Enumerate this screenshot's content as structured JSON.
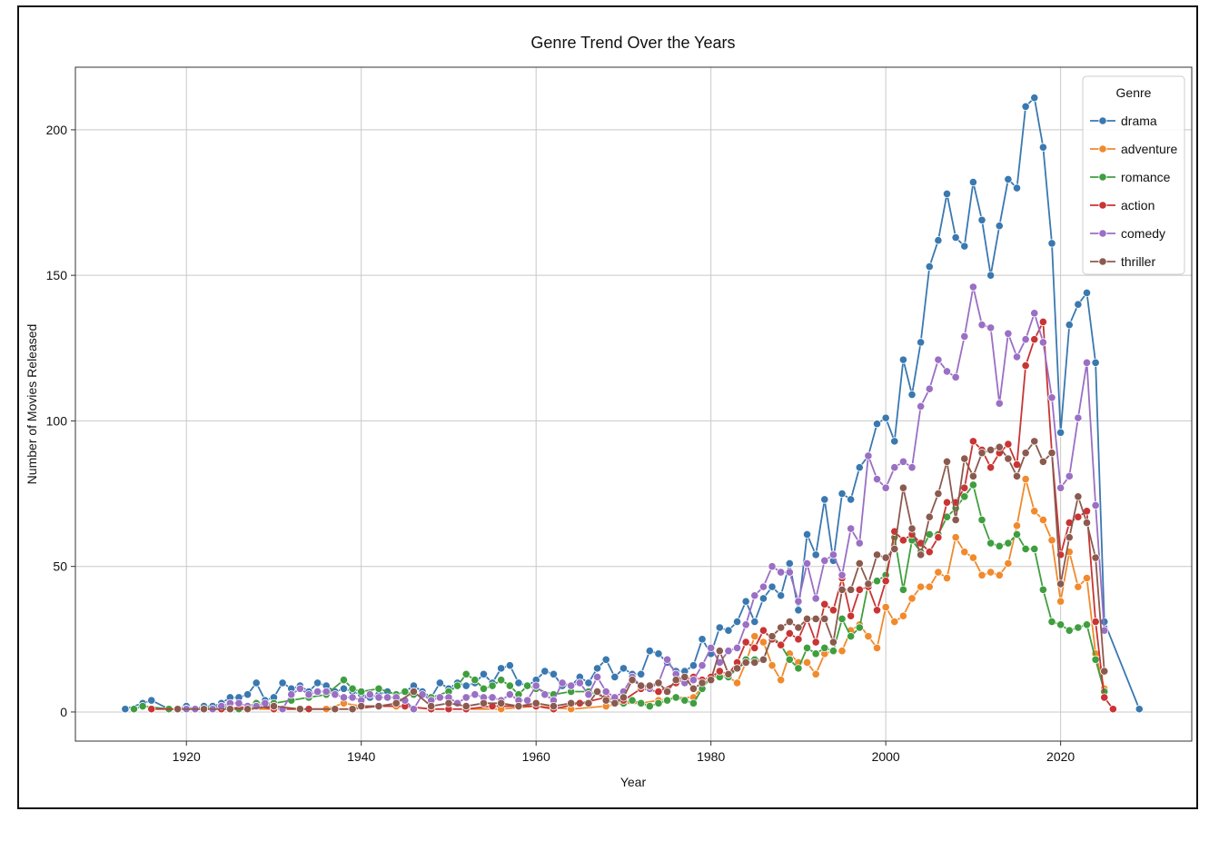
{
  "chart_data": {
    "type": "line",
    "title": "Genre Trend Over the Years",
    "x_label": "Year",
    "y_label": "Number of Movies Released",
    "xlim": [
      1907.3,
      2035
    ],
    "ylim": [
      -10,
      221.5
    ],
    "xticks": [
      1920,
      1940,
      1960,
      1980,
      2000,
      2020
    ],
    "yticks": [
      0,
      50,
      100,
      150,
      200
    ],
    "grid": true,
    "legend_title": "Genre",
    "legend_position": "upper right",
    "series": [
      {
        "name": "drama",
        "color": "#3a78b0",
        "x": [
          1913,
          1915,
          1916,
          1918,
          1919,
          1920,
          1921,
          1922,
          1923,
          1924,
          1925,
          1926,
          1927,
          1928,
          1929,
          1930,
          1931,
          1932,
          1933,
          1934,
          1935,
          1936,
          1937,
          1938,
          1939,
          1940,
          1941,
          1942,
          1943,
          1944,
          1945,
          1946,
          1947,
          1948,
          1949,
          1950,
          1951,
          1952,
          1953,
          1954,
          1955,
          1956,
          1957,
          1958,
          1959,
          1960,
          1961,
          1962,
          1963,
          1964,
          1965,
          1966,
          1967,
          1968,
          1969,
          1970,
          1971,
          1972,
          1973,
          1974,
          1975,
          1976,
          1977,
          1978,
          1979,
          1980,
          1981,
          1982,
          1983,
          1984,
          1985,
          1986,
          1987,
          1988,
          1989,
          1990,
          1991,
          1992,
          1993,
          1994,
          1995,
          1996,
          1997,
          1998,
          1999,
          2000,
          2001,
          2002,
          2003,
          2004,
          2005,
          2006,
          2007,
          2008,
          2009,
          2010,
          2011,
          2012,
          2013,
          2014,
          2015,
          2016,
          2017,
          2018,
          2019,
          2020,
          2021,
          2022,
          2023,
          2024,
          2025,
          2029
        ],
        "values": [
          1,
          3,
          4,
          1,
          1,
          2,
          1,
          2,
          2,
          3,
          5,
          5,
          6,
          10,
          4,
          5,
          10,
          8,
          9,
          7,
          10,
          9,
          7,
          8,
          7,
          6,
          5,
          6,
          7,
          6,
          7,
          9,
          7,
          5,
          10,
          8,
          10,
          9,
          10,
          13,
          10,
          15,
          16,
          10,
          9,
          11,
          14,
          13,
          9,
          9,
          12,
          10,
          15,
          18,
          12,
          15,
          13,
          13,
          21,
          20,
          17,
          14,
          14,
          16,
          25,
          20,
          29,
          28,
          31,
          38,
          31,
          39,
          43,
          40,
          51,
          35,
          61,
          54,
          73,
          52,
          75,
          73,
          84,
          88,
          99,
          101,
          93,
          121,
          109,
          127,
          153,
          162,
          178,
          163,
          160,
          182,
          169,
          150,
          167,
          183,
          180,
          208,
          211,
          194,
          161,
          96,
          133,
          140,
          144,
          120,
          31,
          1
        ]
      },
      {
        "name": "adventure",
        "color": "#f08a2c",
        "x": [
          1920,
          1925,
          1930,
          1934,
          1936,
          1938,
          1940,
          1944,
          1948,
          1952,
          1956,
          1960,
          1964,
          1968,
          1970,
          1972,
          1974,
          1976,
          1978,
          1980,
          1981,
          1982,
          1983,
          1984,
          1985,
          1986,
          1987,
          1988,
          1989,
          1990,
          1991,
          1992,
          1993,
          1994,
          1995,
          1996,
          1997,
          1998,
          1999,
          2000,
          2001,
          2002,
          2003,
          2004,
          2005,
          2006,
          2007,
          2008,
          2009,
          2010,
          2011,
          2012,
          2013,
          2014,
          2015,
          2016,
          2017,
          2018,
          2019,
          2020,
          2021,
          2022,
          2023,
          2024,
          2025
        ],
        "values": [
          1,
          1,
          1,
          1,
          1,
          3,
          2,
          2,
          1,
          1,
          1,
          2,
          1,
          2,
          3,
          3,
          4,
          5,
          5,
          12,
          13,
          12,
          10,
          17,
          26,
          24,
          16,
          11,
          20,
          17,
          17,
          13,
          20,
          21,
          21,
          28,
          30,
          26,
          22,
          36,
          31,
          33,
          39,
          43,
          43,
          48,
          46,
          60,
          55,
          53,
          47,
          48,
          47,
          51,
          64,
          80,
          69,
          66,
          59,
          38,
          55,
          43,
          46,
          20,
          8
        ]
      },
      {
        "name": "romance",
        "color": "#3f9e3f",
        "x": [
          1914,
          1915,
          1918,
          1921,
          1924,
          1926,
          1928,
          1930,
          1932,
          1934,
          1936,
          1938,
          1939,
          1940,
          1942,
          1944,
          1945,
          1946,
          1948,
          1950,
          1951,
          1952,
          1953,
          1954,
          1955,
          1956,
          1957,
          1958,
          1959,
          1960,
          1962,
          1964,
          1966,
          1968,
          1970,
          1971,
          1972,
          1973,
          1974,
          1975,
          1976,
          1977,
          1978,
          1979,
          1980,
          1981,
          1982,
          1983,
          1984,
          1985,
          1986,
          1987,
          1988,
          1989,
          1990,
          1991,
          1992,
          1993,
          1994,
          1995,
          1996,
          1997,
          1998,
          1999,
          2000,
          2001,
          2002,
          2003,
          2004,
          2005,
          2006,
          2007,
          2008,
          2009,
          2010,
          2011,
          2012,
          2013,
          2014,
          2015,
          2016,
          2017,
          2018,
          2019,
          2020,
          2021,
          2022,
          2023,
          2024,
          2025
        ],
        "values": [
          1,
          2,
          1,
          1,
          2,
          1,
          3,
          3,
          4,
          5,
          6,
          11,
          8,
          7,
          8,
          6,
          7,
          6,
          5,
          7,
          9,
          13,
          11,
          8,
          9,
          11,
          9,
          6,
          9,
          8,
          6,
          7,
          7,
          5,
          3,
          4,
          3,
          2,
          3,
          4,
          5,
          4,
          3,
          8,
          12,
          12,
          12,
          15,
          18,
          18,
          18,
          26,
          23,
          18,
          15,
          22,
          20,
          22,
          21,
          32,
          26,
          29,
          44,
          45,
          47,
          60,
          42,
          59,
          55,
          61,
          61,
          67,
          70,
          74,
          78,
          66,
          58,
          57,
          58,
          61,
          56,
          56,
          42,
          31,
          30,
          28,
          29,
          30,
          18,
          7
        ]
      },
      {
        "name": "action",
        "color": "#c93434",
        "x": [
          1916,
          1920,
          1924,
          1928,
          1930,
          1934,
          1937,
          1939,
          1942,
          1945,
          1948,
          1950,
          1952,
          1955,
          1958,
          1960,
          1962,
          1965,
          1968,
          1970,
          1972,
          1974,
          1976,
          1978,
          1979,
          1980,
          1981,
          1982,
          1983,
          1984,
          1985,
          1986,
          1987,
          1988,
          1989,
          1990,
          1991,
          1992,
          1993,
          1994,
          1995,
          1996,
          1997,
          1998,
          1999,
          2000,
          2001,
          2002,
          2003,
          2004,
          2005,
          2006,
          2007,
          2008,
          2009,
          2010,
          2011,
          2012,
          2013,
          2014,
          2015,
          2016,
          2017,
          2018,
          2019,
          2020,
          2021,
          2022,
          2023,
          2024,
          2025,
          2026
        ],
        "values": [
          1,
          1,
          1,
          2,
          1,
          1,
          1,
          1,
          2,
          2,
          1,
          1,
          1,
          2,
          2,
          2,
          1,
          3,
          5,
          4,
          8,
          7,
          10,
          12,
          11,
          12,
          14,
          13,
          17,
          24,
          22,
          28,
          25,
          23,
          27,
          25,
          32,
          24,
          37,
          35,
          46,
          33,
          42,
          43,
          35,
          45,
          62,
          59,
          61,
          58,
          55,
          60,
          72,
          72,
          77,
          93,
          90,
          84,
          89,
          92,
          85,
          119,
          128,
          134,
          89,
          54,
          65,
          67,
          69,
          31,
          5,
          1
        ]
      },
      {
        "name": "comedy",
        "color": "#9a6fc4",
        "x": [
          1919,
          1920,
          1921,
          1922,
          1923,
          1924,
          1925,
          1926,
          1927,
          1928,
          1929,
          1930,
          1931,
          1932,
          1933,
          1934,
          1935,
          1936,
          1937,
          1938,
          1939,
          1940,
          1941,
          1942,
          1943,
          1944,
          1945,
          1946,
          1947,
          1948,
          1949,
          1950,
          1951,
          1952,
          1953,
          1954,
          1955,
          1956,
          1957,
          1958,
          1959,
          1960,
          1961,
          1962,
          1963,
          1964,
          1965,
          1966,
          1967,
          1968,
          1969,
          1970,
          1971,
          1972,
          1973,
          1974,
          1975,
          1976,
          1977,
          1978,
          1979,
          1980,
          1981,
          1982,
          1983,
          1984,
          1985,
          1986,
          1987,
          1988,
          1989,
          1990,
          1991,
          1992,
          1993,
          1994,
          1995,
          1996,
          1997,
          1998,
          1999,
          2000,
          2001,
          2002,
          2003,
          2004,
          2005,
          2006,
          2007,
          2008,
          2009,
          2010,
          2011,
          2012,
          2013,
          2014,
          2015,
          2016,
          2017,
          2018,
          2019,
          2020,
          2021,
          2022,
          2023,
          2024,
          2025
        ],
        "values": [
          1,
          1,
          1,
          1,
          1,
          2,
          3,
          3,
          2,
          2,
          3,
          2,
          1,
          6,
          8,
          6,
          7,
          7,
          6,
          5,
          5,
          4,
          6,
          5,
          5,
          5,
          4,
          1,
          6,
          4,
          5,
          5,
          3,
          5,
          6,
          5,
          5,
          4,
          6,
          4,
          4,
          9,
          6,
          4,
          10,
          9,
          10,
          6,
          12,
          7,
          5,
          7,
          12,
          9,
          8,
          10,
          18,
          13,
          10,
          11,
          16,
          22,
          17,
          21,
          22,
          30,
          40,
          43,
          50,
          48,
          48,
          38,
          51,
          39,
          52,
          54,
          47,
          63,
          58,
          88,
          80,
          77,
          84,
          86,
          84,
          105,
          111,
          121,
          117,
          115,
          129,
          146,
          133,
          132,
          106,
          130,
          122,
          128,
          137,
          127,
          108,
          77,
          81,
          101,
          120,
          71,
          28
        ]
      },
      {
        "name": "thriller",
        "color": "#8b5a4e",
        "x": [
          1919,
          1922,
          1925,
          1927,
          1930,
          1933,
          1937,
          1939,
          1940,
          1942,
          1944,
          1946,
          1948,
          1950,
          1952,
          1954,
          1956,
          1958,
          1960,
          1962,
          1964,
          1966,
          1967,
          1968,
          1969,
          1970,
          1971,
          1972,
          1973,
          1974,
          1975,
          1976,
          1977,
          1978,
          1979,
          1980,
          1981,
          1982,
          1983,
          1984,
          1985,
          1986,
          1987,
          1988,
          1989,
          1990,
          1991,
          1992,
          1993,
          1994,
          1995,
          1996,
          1997,
          1998,
          1999,
          2000,
          2001,
          2002,
          2003,
          2004,
          2005,
          2006,
          2007,
          2008,
          2009,
          2010,
          2011,
          2012,
          2013,
          2014,
          2015,
          2016,
          2017,
          2018,
          2019,
          2020,
          2021,
          2022,
          2023,
          2024,
          2025
        ],
        "values": [
          1,
          1,
          1,
          1,
          2,
          1,
          1,
          1,
          2,
          2,
          3,
          7,
          2,
          3,
          2,
          3,
          3,
          2,
          3,
          2,
          3,
          3,
          7,
          4,
          3,
          5,
          11,
          9,
          9,
          10,
          7,
          11,
          12,
          8,
          10,
          11,
          21,
          13,
          15,
          17,
          17,
          18,
          26,
          29,
          31,
          29,
          32,
          32,
          32,
          24,
          42,
          42,
          51,
          44,
          54,
          53,
          56,
          77,
          63,
          54,
          67,
          75,
          86,
          66,
          87,
          81,
          89,
          90,
          91,
          87,
          81,
          89,
          93,
          86,
          89,
          44,
          60,
          74,
          65,
          53,
          14
        ]
      }
    ]
  }
}
